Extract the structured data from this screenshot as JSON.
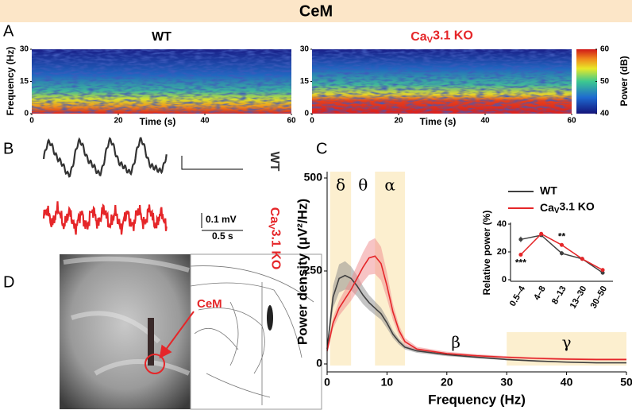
{
  "header": {
    "title": "CeM"
  },
  "panel_labels": [
    "A",
    "B",
    "C",
    "D"
  ],
  "spectrograms": {
    "titles": [
      "WT",
      "CaV3.1 KO"
    ],
    "title_colors": [
      "#000000",
      "#e52629"
    ],
    "ylabel": "Frequency (Hz)",
    "xlabel": "Time (s)",
    "ylim": [
      0,
      30
    ],
    "yticks": [
      0,
      15,
      30
    ],
    "xlim": [
      0,
      60
    ],
    "xticks": [
      0,
      20,
      40,
      60
    ],
    "colorbar": {
      "label": "Power (dB)",
      "lim": [
        40,
        60
      ],
      "ticks": [
        40,
        50,
        60
      ]
    }
  },
  "traces": {
    "labels": [
      "WT",
      "CaV3.1 KO"
    ],
    "colors": [
      "#333333",
      "#e52629"
    ],
    "scale_bars": {
      "voltage": "0.1 mV",
      "time": "0.5 s"
    }
  },
  "histology": {
    "label": "CeM"
  },
  "chart_data": [
    {
      "type": "line",
      "xlabel": "Frequency (Hz)",
      "ylabel": "Power density (μV²/Hz)",
      "xlim": [
        0,
        50
      ],
      "xticks": [
        0,
        10,
        20,
        30,
        40,
        50
      ],
      "ylim": [
        0,
        500
      ],
      "yticks": [
        0,
        250,
        500
      ],
      "bands": [
        {
          "label": "δ",
          "range": [
            0.5,
            4
          ],
          "shaded": true
        },
        {
          "label": "θ",
          "range": [
            4,
            8
          ],
          "shaded": false
        },
        {
          "label": "α",
          "range": [
            8,
            13
          ],
          "shaded": true
        },
        {
          "label": "β",
          "range": [
            13,
            30
          ],
          "shaded": false
        },
        {
          "label": "γ",
          "range": [
            30,
            50
          ],
          "shaded": true
        }
      ],
      "x": [
        0,
        1,
        2,
        3,
        4,
        5,
        6,
        7,
        8,
        9,
        10,
        11,
        12,
        13,
        15,
        20,
        25,
        30,
        35,
        40,
        45,
        50
      ],
      "series": [
        {
          "name": "WT",
          "color": "#404040",
          "band_color": "#8a8a8a",
          "values": [
            40,
            180,
            230,
            238,
            230,
            210,
            185,
            165,
            150,
            135,
            110,
            80,
            60,
            45,
            35,
            25,
            18,
            12,
            8,
            5,
            3,
            3
          ],
          "errors": [
            10,
            30,
            38,
            38,
            32,
            28,
            24,
            20,
            18,
            16,
            14,
            10,
            8,
            6,
            5,
            4,
            3,
            2,
            2,
            1,
            1,
            1
          ]
        },
        {
          "name": "CaV3.1 KO",
          "color": "#e52629",
          "band_color": "#f08a8c",
          "values": [
            35,
            110,
            150,
            175,
            200,
            230,
            260,
            285,
            290,
            270,
            210,
            140,
            90,
            60,
            40,
            28,
            22,
            18,
            15,
            13,
            12,
            12
          ],
          "errors": [
            8,
            15,
            20,
            25,
            30,
            35,
            40,
            45,
            48,
            45,
            35,
            22,
            14,
            10,
            6,
            5,
            4,
            3,
            3,
            3,
            3,
            3
          ]
        }
      ]
    },
    {
      "type": "line",
      "ylabel": "Relative power (%)",
      "categories": [
        "0.5–4",
        "4–8",
        "8–13",
        "13–30",
        "30–50"
      ],
      "ylim": [
        0,
        40
      ],
      "yticks": [
        0,
        20,
        40
      ],
      "legend": "top",
      "series": [
        {
          "name": "WT",
          "color": "#404040",
          "values": [
            29,
            32,
            19,
            15,
            5
          ],
          "errors": [
            2,
            1,
            1.5,
            0.5,
            0.5
          ]
        },
        {
          "name": "CaV3.1 KO",
          "color": "#e52629",
          "values": [
            18,
            33,
            25,
            15,
            7
          ],
          "errors": [
            1,
            1,
            1,
            0.5,
            0.5
          ]
        }
      ],
      "annotations": [
        {
          "text": "***",
          "category": 0
        },
        {
          "text": "**",
          "category": 2
        }
      ]
    }
  ]
}
